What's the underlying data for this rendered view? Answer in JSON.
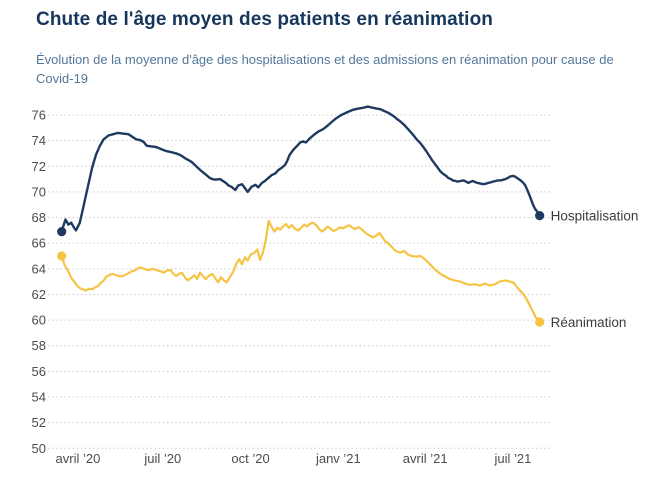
{
  "header": {
    "title": "Chute de l'âge moyen des patients en réanimation",
    "subtitle": "Évolution de la moyenne d'âge des hospitalisations et des admissions en réanimation pour cause de Covid-19"
  },
  "colors": {
    "title": "#16365c",
    "subtitle": "#53779b",
    "grid": "#cccccc",
    "tick_label": "#4c4c4c",
    "series_label": "#3c3c3c",
    "hospitalisation": "#1f3a60",
    "reanimation": "#f6c344"
  },
  "chart_data": {
    "type": "line",
    "title": "Chute de l'âge moyen des patients en réanimation",
    "subtitle": "Évolution de la moyenne d'âge des hospitalisations et des admissions en réanimation pour cause de Covid-19",
    "x_unit": "days since 2020-03-15",
    "grid": "dotted-horizontal",
    "legend_position": "end-of-line",
    "y_range": [
      50,
      77.2
    ],
    "y_ticks": [
      50,
      52,
      54,
      56,
      58,
      60,
      62,
      64,
      66,
      68,
      70,
      72,
      74,
      76
    ],
    "x_ticks": [
      {
        "t": 17,
        "label": "avril ’20"
      },
      {
        "t": 106,
        "label": "juil ’20"
      },
      {
        "t": 198,
        "label": "oct ’20"
      },
      {
        "t": 290,
        "label": "janv ’21"
      },
      {
        "t": 381,
        "label": "avril ’21"
      },
      {
        "t": 473,
        "label": "juil ’21"
      }
    ],
    "series": [
      {
        "name": "Hospitalisation",
        "slug": "hospitalisation",
        "color": "#1f3a60",
        "line_width": 2.4,
        "points": [
          [
            0,
            66.9
          ],
          [
            2,
            67.4
          ],
          [
            4,
            67.85
          ],
          [
            7,
            67.45
          ],
          [
            10,
            67.6
          ],
          [
            13,
            67.2
          ],
          [
            15,
            67.0
          ],
          [
            19,
            67.6
          ],
          [
            23,
            68.9
          ],
          [
            28,
            70.6
          ],
          [
            32,
            71.9
          ],
          [
            36,
            72.9
          ],
          [
            40,
            73.6
          ],
          [
            44,
            74.1
          ],
          [
            49,
            74.4
          ],
          [
            54,
            74.5
          ],
          [
            59,
            74.6
          ],
          [
            64,
            74.55
          ],
          [
            70,
            74.5
          ],
          [
            74,
            74.3
          ],
          [
            78,
            74.1
          ],
          [
            82,
            74.05
          ],
          [
            86,
            73.9
          ],
          [
            89,
            73.6
          ],
          [
            94,
            73.55
          ],
          [
            99,
            73.5
          ],
          [
            104,
            73.35
          ],
          [
            109,
            73.2
          ],
          [
            115,
            73.1
          ],
          [
            120,
            73.0
          ],
          [
            125,
            72.85
          ],
          [
            130,
            72.6
          ],
          [
            136,
            72.35
          ],
          [
            141,
            72.0
          ],
          [
            146,
            71.65
          ],
          [
            151,
            71.35
          ],
          [
            155,
            71.1
          ],
          [
            158,
            71.0
          ],
          [
            161,
            70.95
          ],
          [
            166,
            71.0
          ],
          [
            169,
            70.85
          ],
          [
            172,
            70.7
          ],
          [
            175,
            70.5
          ],
          [
            178,
            70.4
          ],
          [
            182,
            70.15
          ],
          [
            185,
            70.5
          ],
          [
            189,
            70.6
          ],
          [
            192,
            70.3
          ],
          [
            195,
            70.0
          ],
          [
            199,
            70.4
          ],
          [
            203,
            70.55
          ],
          [
            206,
            70.35
          ],
          [
            210,
            70.7
          ],
          [
            213,
            70.85
          ],
          [
            216,
            71.05
          ],
          [
            220,
            71.3
          ],
          [
            224,
            71.45
          ],
          [
            227,
            71.7
          ],
          [
            231,
            71.9
          ],
          [
            234,
            72.1
          ],
          [
            236,
            72.35
          ],
          [
            239,
            72.9
          ],
          [
            243,
            73.3
          ],
          [
            247,
            73.6
          ],
          [
            250,
            73.85
          ],
          [
            253,
            73.95
          ],
          [
            256,
            73.85
          ],
          [
            259,
            74.1
          ],
          [
            262,
            74.3
          ],
          [
            266,
            74.55
          ],
          [
            269,
            74.7
          ],
          [
            273,
            74.85
          ],
          [
            276,
            75.0
          ],
          [
            280,
            75.25
          ],
          [
            283,
            75.45
          ],
          [
            287,
            75.7
          ],
          [
            290,
            75.85
          ],
          [
            293,
            76.0
          ],
          [
            296,
            76.1
          ],
          [
            299,
            76.2
          ],
          [
            302,
            76.3
          ],
          [
            305,
            76.4
          ],
          [
            308,
            76.45
          ],
          [
            311,
            76.5
          ],
          [
            315,
            76.55
          ],
          [
            318,
            76.6
          ],
          [
            321,
            76.65
          ],
          [
            324,
            76.6
          ],
          [
            327,
            76.55
          ],
          [
            330,
            76.5
          ],
          [
            334,
            76.45
          ],
          [
            337,
            76.35
          ],
          [
            340,
            76.25
          ],
          [
            343,
            76.15
          ],
          [
            346,
            76.0
          ],
          [
            349,
            75.85
          ],
          [
            351,
            75.7
          ],
          [
            354,
            75.55
          ],
          [
            358,
            75.3
          ],
          [
            360,
            75.15
          ],
          [
            363,
            74.9
          ],
          [
            366,
            74.65
          ],
          [
            369,
            74.4
          ],
          [
            372,
            74.1
          ],
          [
            376,
            73.8
          ],
          [
            379,
            73.5
          ],
          [
            382,
            73.2
          ],
          [
            385,
            72.85
          ],
          [
            388,
            72.5
          ],
          [
            391,
            72.2
          ],
          [
            394,
            71.9
          ],
          [
            397,
            71.6
          ],
          [
            400,
            71.4
          ],
          [
            403,
            71.25
          ],
          [
            405,
            71.1
          ],
          [
            408,
            71.0
          ],
          [
            410,
            70.9
          ],
          [
            413,
            70.85
          ],
          [
            415,
            70.8
          ],
          [
            418,
            70.85
          ],
          [
            421,
            70.9
          ],
          [
            424,
            70.8
          ],
          [
            426,
            70.7
          ],
          [
            429,
            70.8
          ],
          [
            431,
            70.85
          ],
          [
            434,
            70.75
          ],
          [
            436,
            70.7
          ],
          [
            439,
            70.65
          ],
          [
            442,
            70.6
          ],
          [
            445,
            70.65
          ],
          [
            447,
            70.7
          ],
          [
            450,
            70.75
          ],
          [
            452,
            70.8
          ],
          [
            455,
            70.85
          ],
          [
            457,
            70.9
          ],
          [
            460,
            70.9
          ],
          [
            463,
            70.95
          ],
          [
            465,
            71.0
          ],
          [
            468,
            71.1
          ],
          [
            470,
            71.2
          ],
          [
            473,
            71.25
          ],
          [
            475,
            71.2
          ],
          [
            477,
            71.1
          ],
          [
            479,
            71.0
          ],
          [
            481,
            70.9
          ],
          [
            484,
            70.7
          ],
          [
            486,
            70.5
          ],
          [
            488,
            70.15
          ],
          [
            490,
            69.8
          ],
          [
            492,
            69.4
          ],
          [
            494,
            69.0
          ],
          [
            496,
            68.7
          ],
          [
            498,
            68.5
          ],
          [
            500,
            68.3
          ],
          [
            501,
            68.15
          ]
        ]
      },
      {
        "name": "Réanimation",
        "slug": "reanimation",
        "color": "#f6c344",
        "line_width": 2.2,
        "points": [
          [
            0,
            65.0
          ],
          [
            3,
            64.3
          ],
          [
            7,
            63.8
          ],
          [
            10,
            63.3
          ],
          [
            13,
            63.0
          ],
          [
            16,
            62.7
          ],
          [
            19,
            62.5
          ],
          [
            22,
            62.4
          ],
          [
            25,
            62.3
          ],
          [
            29,
            62.45
          ],
          [
            32,
            62.4
          ],
          [
            35,
            62.55
          ],
          [
            38,
            62.65
          ],
          [
            41,
            62.9
          ],
          [
            44,
            63.1
          ],
          [
            47,
            63.4
          ],
          [
            51,
            63.55
          ],
          [
            54,
            63.6
          ],
          [
            57,
            63.5
          ],
          [
            60,
            63.45
          ],
          [
            63,
            63.4
          ],
          [
            66,
            63.5
          ],
          [
            70,
            63.65
          ],
          [
            73,
            63.8
          ],
          [
            76,
            63.85
          ],
          [
            79,
            64.0
          ],
          [
            82,
            64.1
          ],
          [
            85,
            64.05
          ],
          [
            88,
            63.95
          ],
          [
            92,
            63.9
          ],
          [
            95,
            64.0
          ],
          [
            98,
            63.95
          ],
          [
            101,
            63.85
          ],
          [
            104,
            63.8
          ],
          [
            107,
            63.7
          ],
          [
            110,
            63.85
          ],
          [
            114,
            63.9
          ],
          [
            117,
            63.6
          ],
          [
            120,
            63.45
          ],
          [
            123,
            63.6
          ],
          [
            126,
            63.7
          ],
          [
            129,
            63.35
          ],
          [
            132,
            63.1
          ],
          [
            136,
            63.3
          ],
          [
            139,
            63.5
          ],
          [
            142,
            63.2
          ],
          [
            145,
            63.7
          ],
          [
            148,
            63.45
          ],
          [
            151,
            63.2
          ],
          [
            154,
            63.45
          ],
          [
            158,
            63.6
          ],
          [
            161,
            63.25
          ],
          [
            164,
            62.95
          ],
          [
            167,
            63.35
          ],
          [
            170,
            63.1
          ],
          [
            173,
            62.95
          ],
          [
            176,
            63.3
          ],
          [
            180,
            63.8
          ],
          [
            183,
            64.4
          ],
          [
            186,
            64.75
          ],
          [
            189,
            64.35
          ],
          [
            192,
            64.9
          ],
          [
            195,
            64.65
          ],
          [
            198,
            65.1
          ],
          [
            202,
            65.25
          ],
          [
            205,
            65.5
          ],
          [
            208,
            64.7
          ],
          [
            211,
            65.3
          ],
          [
            214,
            66.3
          ],
          [
            217,
            67.75
          ],
          [
            219,
            67.4
          ],
          [
            223,
            66.9
          ],
          [
            226,
            67.2
          ],
          [
            229,
            67.05
          ],
          [
            232,
            67.3
          ],
          [
            235,
            67.5
          ],
          [
            238,
            67.2
          ],
          [
            241,
            67.4
          ],
          [
            245,
            67.1
          ],
          [
            248,
            67.0
          ],
          [
            251,
            67.2
          ],
          [
            254,
            67.45
          ],
          [
            257,
            67.3
          ],
          [
            260,
            67.5
          ],
          [
            263,
            67.6
          ],
          [
            267,
            67.4
          ],
          [
            270,
            67.1
          ],
          [
            273,
            66.9
          ],
          [
            276,
            67.1
          ],
          [
            279,
            67.3
          ],
          [
            282,
            67.1
          ],
          [
            285,
            66.95
          ],
          [
            289,
            67.1
          ],
          [
            292,
            67.25
          ],
          [
            295,
            67.15
          ],
          [
            298,
            67.3
          ],
          [
            301,
            67.4
          ],
          [
            304,
            67.25
          ],
          [
            307,
            67.1
          ],
          [
            311,
            67.25
          ],
          [
            314,
            67.1
          ],
          [
            317,
            66.9
          ],
          [
            320,
            66.7
          ],
          [
            323,
            66.6
          ],
          [
            326,
            66.45
          ],
          [
            330,
            66.6
          ],
          [
            333,
            66.8
          ],
          [
            336,
            66.5
          ],
          [
            339,
            66.15
          ],
          [
            342,
            66.0
          ],
          [
            346,
            65.7
          ],
          [
            350,
            65.4
          ],
          [
            355,
            65.25
          ],
          [
            359,
            65.4
          ],
          [
            363,
            65.1
          ],
          [
            367,
            65.0
          ],
          [
            371,
            64.95
          ],
          [
            376,
            65.0
          ],
          [
            380,
            64.8
          ],
          [
            384,
            64.5
          ],
          [
            388,
            64.2
          ],
          [
            392,
            63.9
          ],
          [
            397,
            63.6
          ],
          [
            402,
            63.4
          ],
          [
            407,
            63.2
          ],
          [
            412,
            63.1
          ],
          [
            418,
            63.0
          ],
          [
            423,
            62.85
          ],
          [
            428,
            62.75
          ],
          [
            433,
            62.8
          ],
          [
            438,
            62.7
          ],
          [
            444,
            62.85
          ],
          [
            449,
            62.7
          ],
          [
            454,
            62.8
          ],
          [
            459,
            63.0
          ],
          [
            465,
            63.1
          ],
          [
            470,
            63.0
          ],
          [
            474,
            62.9
          ],
          [
            478,
            62.5
          ],
          [
            483,
            62.1
          ],
          [
            486,
            61.8
          ],
          [
            489,
            61.4
          ],
          [
            493,
            60.8
          ],
          [
            497,
            60.2
          ],
          [
            501,
            59.85
          ]
        ]
      }
    ]
  }
}
